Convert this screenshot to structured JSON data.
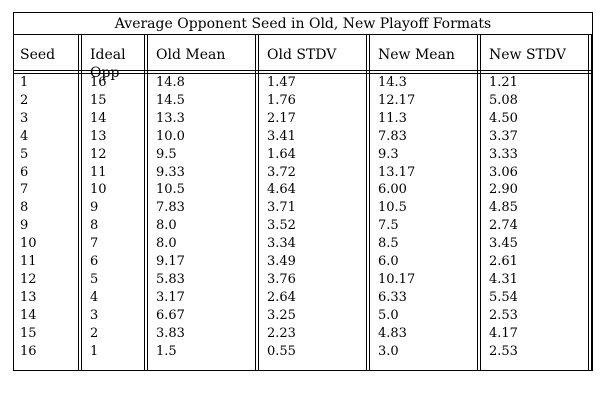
{
  "title": "Average Opponent Seed in Old, New Playoff Formats",
  "columns": [
    "Seed",
    "Ideal Opp",
    "Old Mean",
    "Old STDV",
    "New Mean",
    "New STDV"
  ],
  "header_lines": [
    [
      "Seed"
    ],
    [
      "Ideal",
      "Opp"
    ],
    [
      "Old Mean"
    ],
    [
      "Old STDV"
    ],
    [
      "New Mean"
    ],
    [
      "New STDV"
    ]
  ],
  "rows": [
    [
      "1",
      "16",
      "14.8",
      "1.47",
      "14.3",
      "1.21"
    ],
    [
      "2",
      "15",
      "14.5",
      "1.76",
      "12.17",
      "5.08"
    ],
    [
      "3",
      "14",
      "13.3",
      "2.17",
      "11.3",
      "4.50"
    ],
    [
      "4",
      "13",
      "10.0",
      "3.41",
      "7.83",
      "3.37"
    ],
    [
      "5",
      "12",
      "9.5",
      "1.64",
      "9.3",
      "3.33"
    ],
    [
      "6",
      "11",
      "9.33",
      "3.72",
      "13.17",
      "3.06"
    ],
    [
      "7",
      "10",
      "10.5",
      "4.64",
      "6.00",
      "2.90"
    ],
    [
      "8",
      "9",
      "7.83",
      "3.71",
      "10.5",
      "4.85"
    ],
    [
      "9",
      "8",
      "8.0",
      "3.52",
      "7.5",
      "2.74"
    ],
    [
      "10",
      "7",
      "8.0",
      "3.34",
      "8.5",
      "3.45"
    ],
    [
      "11",
      "6",
      "9.17",
      "3.49",
      "6.0",
      "2.61"
    ],
    [
      "12",
      "5",
      "5.83",
      "3.76",
      "10.17",
      "4.31"
    ],
    [
      "13",
      "4",
      "3.17",
      "2.64",
      "6.33",
      "5.54"
    ],
    [
      "14",
      "3",
      "6.67",
      "3.25",
      "5.0",
      "2.53"
    ],
    [
      "15",
      "2",
      "3.83",
      "2.23",
      "4.83",
      "4.17"
    ],
    [
      "16",
      "1",
      "1.5",
      "0.55",
      "3.0",
      "2.53"
    ]
  ]
}
